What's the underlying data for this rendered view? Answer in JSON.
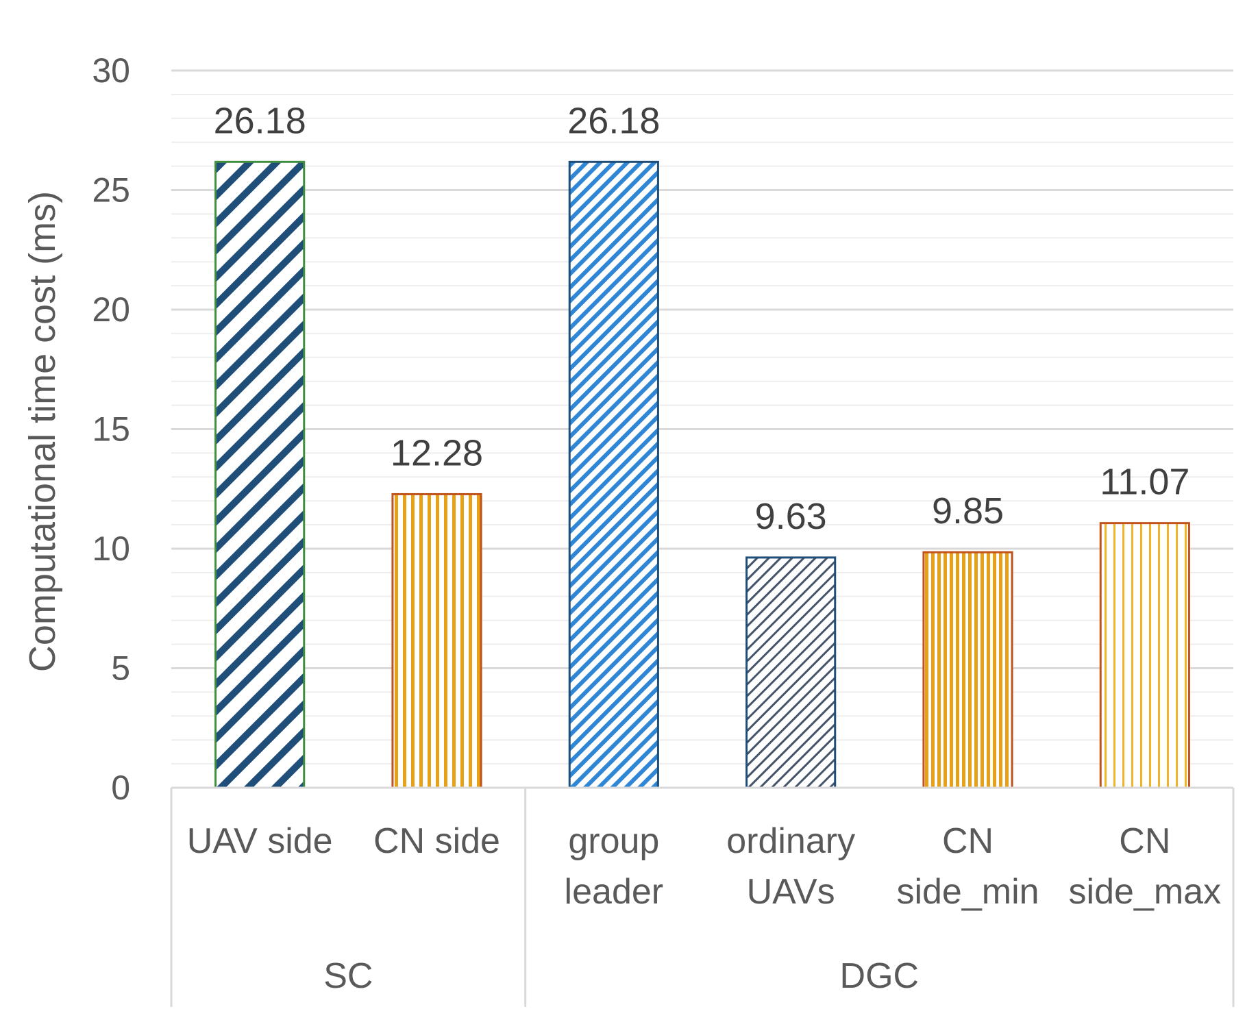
{
  "chart_data": {
    "type": "bar",
    "title": "",
    "xlabel": "",
    "ylabel": "Computational time cost (ms)",
    "ylim": [
      0,
      30
    ],
    "major_ticks": [
      0,
      5,
      10,
      15,
      20,
      25,
      30
    ],
    "minor_tick_step": 1,
    "grid": true,
    "groups": [
      {
        "name": "SC",
        "bars": [
          {
            "category": [
              "UAV side"
            ],
            "value": 26.18,
            "label": "26.18",
            "pattern": "diag-wide",
            "fill_color": "#1f4e79",
            "border_color": "#3f8f3f"
          },
          {
            "category": [
              "CN side"
            ],
            "value": 12.28,
            "label": "12.28",
            "pattern": "vertical",
            "fill_color": "#e6a118",
            "border_color": "#c0531d"
          }
        ]
      },
      {
        "name": "DGC",
        "bars": [
          {
            "category": [
              "group",
              "leader"
            ],
            "value": 26.18,
            "label": "26.18",
            "pattern": "diag-narrow",
            "fill_color": "#2f86d4",
            "border_color": "#1f4e79"
          },
          {
            "category": [
              "ordinary",
              "UAVs"
            ],
            "value": 9.63,
            "label": "9.63",
            "pattern": "diag-thin",
            "fill_color": "#44546a",
            "border_color": "#1f4e79"
          },
          {
            "category": [
              "CN",
              "side_min"
            ],
            "value": 9.85,
            "label": "9.85",
            "pattern": "vertical-dense",
            "fill_color": "#e6a118",
            "border_color": "#c0531d"
          },
          {
            "category": [
              "CN",
              "side_max"
            ],
            "value": 11.07,
            "label": "11.07",
            "pattern": "vertical-light",
            "fill_color": "#f0b429",
            "border_color": "#c0531d"
          }
        ]
      }
    ]
  }
}
